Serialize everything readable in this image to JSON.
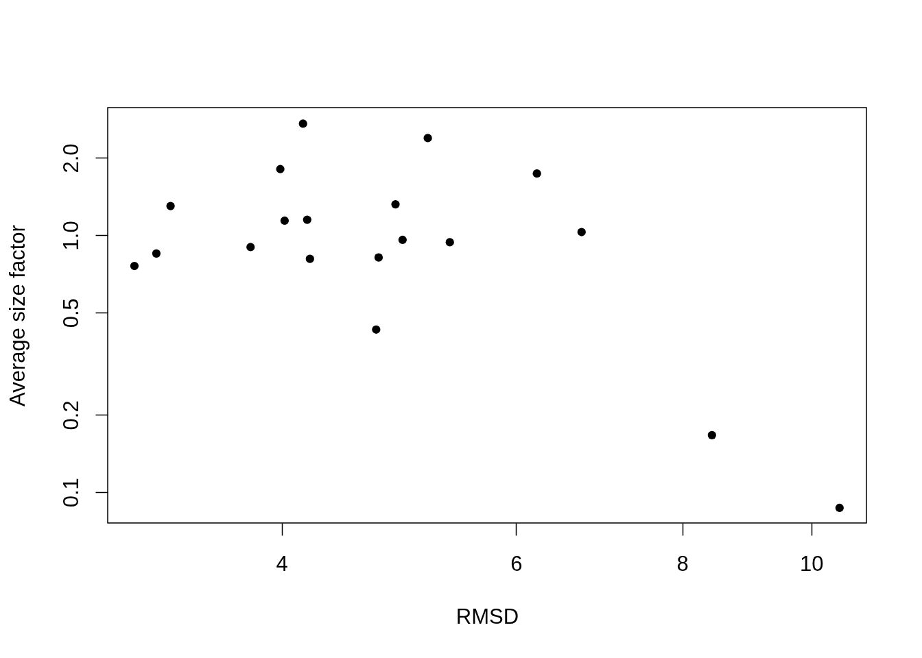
{
  "chart_data": {
    "type": "scatter",
    "xlabel": "RMSD",
    "ylabel": "Average size factor",
    "x": [
      3.1,
      3.22,
      3.3,
      3.79,
      3.99,
      4.02,
      4.15,
      4.18,
      4.2,
      4.71,
      4.73,
      4.87,
      4.93,
      5.15,
      5.35,
      6.22,
      6.72,
      8.42,
      10.5
    ],
    "values": [
      0.76,
      0.85,
      1.3,
      0.9,
      1.81,
      1.14,
      2.72,
      1.15,
      0.81,
      0.43,
      0.82,
      1.32,
      0.96,
      2.39,
      0.94,
      1.74,
      1.03,
      0.167,
      0.087
    ],
    "color": "#000000",
    "marker": "circle",
    "log": "xy",
    "xlim": [
      2.96,
      11.0
    ],
    "ylim": [
      0.076,
      3.14
    ],
    "xticks": [
      4,
      6,
      8,
      10
    ],
    "yticks": [
      0.1,
      0.2,
      0.5,
      {
        "value": 1,
        "label": "1.0"
      },
      {
        "value": 2,
        "label": "2.0"
      }
    ]
  }
}
